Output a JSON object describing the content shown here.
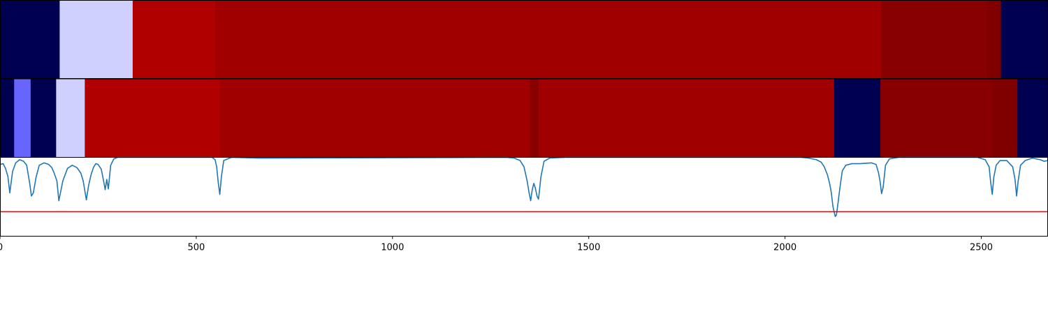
{
  "chart_data": [
    {
      "type": "heatmap",
      "xlim": [
        0,
        2670
      ],
      "segments": [
        {
          "x0": 0,
          "x1": 152,
          "color": "#000050"
        },
        {
          "x0": 152,
          "x1": 338,
          "color": "#d0d0ff"
        },
        {
          "x0": 338,
          "x1": 548,
          "color": "#b00000"
        },
        {
          "x0": 548,
          "x1": 2245,
          "color": "#a00000"
        },
        {
          "x0": 2245,
          "x1": 2515,
          "color": "#880000"
        },
        {
          "x0": 2515,
          "x1": 2550,
          "color": "#800000"
        },
        {
          "x0": 2550,
          "x1": 2670,
          "color": "#000050"
        }
      ]
    },
    {
      "type": "heatmap",
      "xlim": [
        0,
        2670
      ],
      "segments": [
        {
          "x0": 0,
          "x1": 36,
          "color": "#000050"
        },
        {
          "x0": 36,
          "x1": 78,
          "color": "#6666ff"
        },
        {
          "x0": 78,
          "x1": 143,
          "color": "#000050"
        },
        {
          "x0": 143,
          "x1": 216,
          "color": "#d0d0ff"
        },
        {
          "x0": 216,
          "x1": 560,
          "color": "#b00000"
        },
        {
          "x0": 560,
          "x1": 1350,
          "color": "#a00000"
        },
        {
          "x0": 1350,
          "x1": 1372,
          "color": "#880000"
        },
        {
          "x0": 1372,
          "x1": 2125,
          "color": "#a00000"
        },
        {
          "x0": 2125,
          "x1": 2243,
          "color": "#000050"
        },
        {
          "x0": 2243,
          "x1": 2528,
          "color": "#880000"
        },
        {
          "x0": 2528,
          "x1": 2592,
          "color": "#800000"
        },
        {
          "x0": 2592,
          "x1": 2670,
          "color": "#000050"
        }
      ]
    },
    {
      "type": "line",
      "xlim": [
        0,
        2670
      ],
      "ylim": [
        0,
        1
      ],
      "x_ticks": [
        0,
        500,
        1000,
        1500,
        2000,
        2500
      ],
      "x_tick_labels": [
        "0",
        "500",
        "1000",
        "1500",
        "2000",
        "2500"
      ],
      "series": [
        {
          "color": "#1f77b4",
          "x": [
            0,
            8,
            14,
            20,
            25,
            32,
            40,
            50,
            60,
            68,
            72,
            76,
            80,
            85,
            92,
            100,
            112,
            124,
            132,
            138,
            145,
            150,
            160,
            172,
            184,
            196,
            206,
            212,
            216,
            220,
            226,
            232,
            238,
            244,
            250,
            258,
            264,
            268,
            272,
            276,
            282,
            290,
            300,
            540,
            548,
            552,
            556,
            560,
            564,
            570,
            590,
            660,
            1290,
            1310,
            1325,
            1335,
            1343,
            1348,
            1352,
            1356,
            1360,
            1364,
            1368,
            1372,
            1378,
            1386,
            1400,
            1440,
            2040,
            2060,
            2080,
            2092,
            2100,
            2108,
            2114,
            2118,
            2122,
            2125,
            2128,
            2131,
            2135,
            2140,
            2146,
            2155,
            2170,
            2190,
            2220,
            2232,
            2238,
            2242,
            2246,
            2250,
            2256,
            2266,
            2290,
            2490,
            2510,
            2520,
            2524,
            2528,
            2532,
            2538,
            2548,
            2565,
            2580,
            2586,
            2590,
            2594,
            2600,
            2612,
            2630,
            2650,
            2660,
            2670
          ],
          "y": [
            0.91,
            0.92,
            0.86,
            0.76,
            0.55,
            0.82,
            0.93,
            0.97,
            0.95,
            0.9,
            0.78,
            0.66,
            0.51,
            0.55,
            0.75,
            0.9,
            0.93,
            0.91,
            0.87,
            0.8,
            0.7,
            0.45,
            0.7,
            0.86,
            0.9,
            0.87,
            0.8,
            0.7,
            0.58,
            0.46,
            0.65,
            0.78,
            0.87,
            0.92,
            0.91,
            0.85,
            0.7,
            0.59,
            0.72,
            0.6,
            0.9,
            0.98,
            1.0,
            1.0,
            0.97,
            0.88,
            0.68,
            0.53,
            0.75,
            0.96,
            1.0,
            0.99,
            1.0,
            0.99,
            0.96,
            0.88,
            0.7,
            0.55,
            0.45,
            0.59,
            0.67,
            0.61,
            0.51,
            0.47,
            0.75,
            0.95,
            0.99,
            1.0,
            1.0,
            0.99,
            0.97,
            0.94,
            0.88,
            0.78,
            0.66,
            0.55,
            0.38,
            0.31,
            0.25,
            0.27,
            0.42,
            0.62,
            0.83,
            0.9,
            0.92,
            0.92,
            0.93,
            0.91,
            0.81,
            0.7,
            0.54,
            0.62,
            0.9,
            0.98,
            1.0,
            1.0,
            0.97,
            0.88,
            0.68,
            0.53,
            0.75,
            0.9,
            0.96,
            0.96,
            0.88,
            0.72,
            0.51,
            0.7,
            0.9,
            0.96,
            0.99,
            0.97,
            0.95,
            0.96
          ]
        },
        {
          "color": "#ff0000",
          "x": [
            0,
            2670
          ],
          "y": [
            0.31,
            0.31
          ]
        }
      ]
    }
  ]
}
